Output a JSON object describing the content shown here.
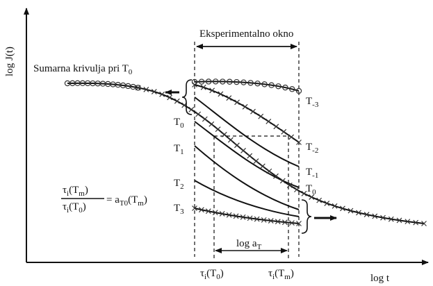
{
  "axes": {
    "ylabel": "log J(t)",
    "xlabel": "log  t"
  },
  "window_label": "Eksperimentalno okno",
  "master_curve_label": "Sumarna krivulja pri T",
  "master_curve_sub": "0",
  "temperatures": [
    {
      "base": "T",
      "sub": "-3"
    },
    {
      "base": "T",
      "sub": "-2"
    },
    {
      "base": "T",
      "sub": "-1"
    },
    {
      "base": "T",
      "sub": "0"
    },
    {
      "base": "T",
      "sub": "0"
    },
    {
      "base": "T",
      "sub": "1"
    },
    {
      "base": "T",
      "sub": "2"
    },
    {
      "base": "T",
      "sub": "3"
    }
  ],
  "shift": {
    "label": "log a",
    "sub": "T"
  },
  "x_ticks": [
    {
      "pre": "τ",
      "sub1": "i",
      "mid": "(T",
      "sub2": "0",
      "post": ")"
    },
    {
      "pre": "τ",
      "sub1": "i",
      "mid": "(T",
      "sub2": "m",
      "post": ")"
    }
  ],
  "ratio": {
    "num": {
      "pre": "τ",
      "sub1": "i",
      "mid": "(T",
      "sub2": "m",
      "post": ")"
    },
    "den": {
      "pre": "τ",
      "sub1": "i",
      "mid": "(T",
      "sub2": "0",
      "post": ")"
    },
    "rhs": {
      "pre": "= a",
      "sub1": "T0",
      "mid": "(T",
      "sub2": "m",
      "post": ")"
    }
  }
}
